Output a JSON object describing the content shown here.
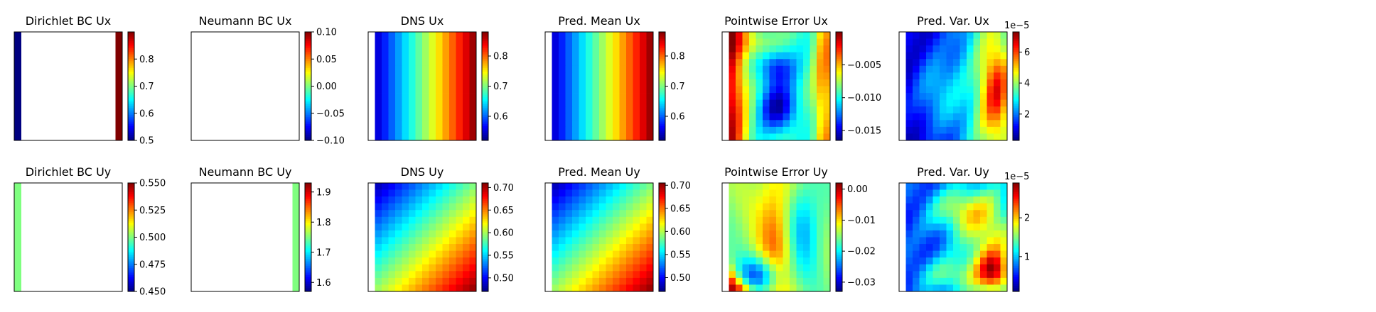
{
  "chart_data": [
    {
      "type": "heatmap",
      "title": "Dirichlet BC Ux",
      "row": 0,
      "col": 0,
      "pattern": "boundary",
      "boundary": {
        "side": "both",
        "left": 0.5,
        "right": 0.9,
        "nx": 16
      },
      "vmin": 0.5,
      "vmax": 0.9,
      "colorbar_ticks": [
        {
          "v": 0.5,
          "label": "0.5"
        },
        {
          "v": 0.6,
          "label": "0.6"
        },
        {
          "v": 0.7,
          "label": "0.7"
        },
        {
          "v": 0.8,
          "label": "0.8"
        }
      ],
      "offset_text": ""
    },
    {
      "type": "heatmap",
      "title": "Neumann BC Ux",
      "row": 0,
      "col": 1,
      "pattern": "blank",
      "vmin": -0.1,
      "vmax": 0.1,
      "colorbar_ticks": [
        {
          "v": -0.1,
          "label": "−0.10"
        },
        {
          "v": -0.05,
          "label": "−0.05"
        },
        {
          "v": 0.0,
          "label": "0.00"
        },
        {
          "v": 0.05,
          "label": "0.05"
        },
        {
          "v": 0.1,
          "label": "0.10"
        }
      ],
      "offset_text": ""
    },
    {
      "type": "heatmap",
      "title": "DNS Ux",
      "row": 0,
      "col": 2,
      "pattern": "ramp_x",
      "range": [
        0.52,
        0.88
      ],
      "nx": 16,
      "ny": 16,
      "left_white": true,
      "vmin": 0.52,
      "vmax": 0.88,
      "colorbar_ticks": [
        {
          "v": 0.6,
          "label": "0.6"
        },
        {
          "v": 0.7,
          "label": "0.7"
        },
        {
          "v": 0.8,
          "label": "0.8"
        }
      ],
      "offset_text": ""
    },
    {
      "type": "heatmap",
      "title": "Pred. Mean Ux",
      "row": 0,
      "col": 3,
      "pattern": "ramp_x",
      "range": [
        0.52,
        0.88
      ],
      "nx": 16,
      "ny": 16,
      "left_white": true,
      "vmin": 0.52,
      "vmax": 0.88,
      "colorbar_ticks": [
        {
          "v": 0.6,
          "label": "0.6"
        },
        {
          "v": 0.7,
          "label": "0.7"
        },
        {
          "v": 0.8,
          "label": "0.8"
        }
      ],
      "offset_text": ""
    },
    {
      "type": "heatmap",
      "title": "Pointwise Error Ux",
      "row": 0,
      "col": 4,
      "pattern": "error_ux",
      "nx": 16,
      "ny": 16,
      "left_white": true,
      "vmin": -0.0165,
      "vmax": 0.0,
      "colorbar_ticks": [
        {
          "v": -0.015,
          "label": "−0.015"
        },
        {
          "v": -0.01,
          "label": "−0.010"
        },
        {
          "v": -0.005,
          "label": "−0.005"
        }
      ],
      "offset_text": ""
    },
    {
      "type": "heatmap",
      "title": "Pred. Var. Ux",
      "row": 0,
      "col": 5,
      "pattern": "var_ux",
      "nx": 16,
      "ny": 16,
      "left_white": true,
      "vmin": 0.3,
      "vmax": 7.3,
      "colorbar_ticks": [
        {
          "v": 2,
          "label": "2"
        },
        {
          "v": 4,
          "label": "4"
        },
        {
          "v": 6,
          "label": "6"
        }
      ],
      "offset_text": "1e−5"
    },
    {
      "type": "heatmap",
      "title": "Dirichlet BC Uy",
      "row": 1,
      "col": 0,
      "pattern": "boundary",
      "boundary": {
        "side": "left",
        "left": 0.5,
        "nx": 16
      },
      "vmin": 0.45,
      "vmax": 0.55,
      "colorbar_ticks": [
        {
          "v": 0.45,
          "label": "0.450"
        },
        {
          "v": 0.475,
          "label": "0.475"
        },
        {
          "v": 0.5,
          "label": "0.500"
        },
        {
          "v": 0.525,
          "label": "0.525"
        },
        {
          "v": 0.55,
          "label": "0.550"
        }
      ],
      "offset_text": ""
    },
    {
      "type": "heatmap",
      "title": "Neumann BC Uy",
      "row": 1,
      "col": 1,
      "pattern": "boundary",
      "boundary": {
        "side": "right",
        "right": 1.75,
        "nx": 16
      },
      "vmin": 1.57,
      "vmax": 1.93,
      "colorbar_ticks": [
        {
          "v": 1.6,
          "label": "1.6"
        },
        {
          "v": 1.7,
          "label": "1.7"
        },
        {
          "v": 1.8,
          "label": "1.8"
        },
        {
          "v": 1.9,
          "label": "1.9"
        }
      ],
      "offset_text": ""
    },
    {
      "type": "heatmap",
      "title": "DNS Uy",
      "row": 1,
      "col": 2,
      "pattern": "ramp_xy",
      "range": [
        0.47,
        0.71
      ],
      "nx": 16,
      "ny": 16,
      "left_white": true,
      "vmin": 0.47,
      "vmax": 0.71,
      "colorbar_ticks": [
        {
          "v": 0.5,
          "label": "0.50"
        },
        {
          "v": 0.55,
          "label": "0.55"
        },
        {
          "v": 0.6,
          "label": "0.60"
        },
        {
          "v": 0.65,
          "label": "0.65"
        },
        {
          "v": 0.7,
          "label": "0.70"
        }
      ],
      "offset_text": ""
    },
    {
      "type": "heatmap",
      "title": "Pred. Mean Uy",
      "row": 1,
      "col": 3,
      "pattern": "ramp_xy",
      "range": [
        0.47,
        0.705
      ],
      "nx": 16,
      "ny": 16,
      "left_white": true,
      "vmin": 0.47,
      "vmax": 0.705,
      "colorbar_ticks": [
        {
          "v": 0.5,
          "label": "0.50"
        },
        {
          "v": 0.55,
          "label": "0.55"
        },
        {
          "v": 0.6,
          "label": "0.60"
        },
        {
          "v": 0.65,
          "label": "0.65"
        },
        {
          "v": 0.7,
          "label": "0.70"
        }
      ],
      "offset_text": ""
    },
    {
      "type": "heatmap",
      "title": "Pointwise Error Uy",
      "row": 1,
      "col": 4,
      "pattern": "error_uy",
      "nx": 16,
      "ny": 16,
      "left_white": true,
      "vmin": -0.033,
      "vmax": 0.002,
      "colorbar_ticks": [
        {
          "v": -0.03,
          "label": "−0.03"
        },
        {
          "v": -0.02,
          "label": "−0.02"
        },
        {
          "v": -0.01,
          "label": "−0.01"
        },
        {
          "v": 0.0,
          "label": "0.00"
        }
      ],
      "offset_text": ""
    },
    {
      "type": "heatmap",
      "title": "Pred. Var. Uy",
      "row": 1,
      "col": 5,
      "pattern": "var_uy",
      "nx": 16,
      "ny": 16,
      "left_white": true,
      "vmin": 0.1,
      "vmax": 2.9,
      "colorbar_ticks": [
        {
          "v": 1,
          "label": "1"
        },
        {
          "v": 2,
          "label": "2"
        }
      ],
      "offset_text": "1e−5"
    }
  ]
}
